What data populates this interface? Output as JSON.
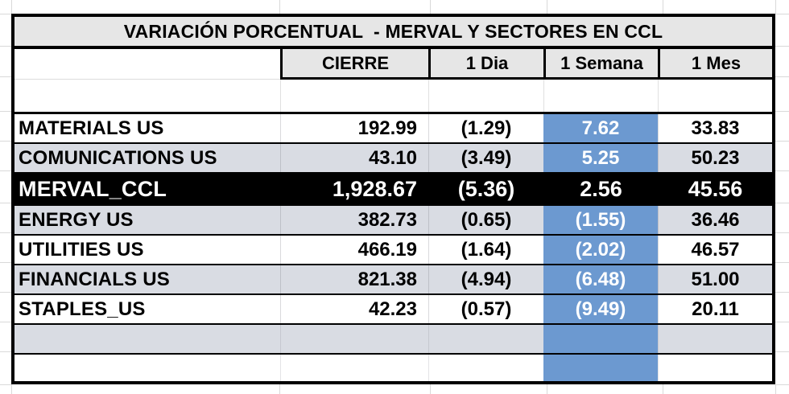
{
  "title": "VARIACIÓN PORCENTUAL  - MERVAL Y SECTORES EN CCL",
  "columns": [
    "CIERRE",
    "1 Dia",
    "1 Semana",
    "1 Mes"
  ],
  "rows": [
    {
      "label": "MATERIALS US",
      "cierre": "192.99",
      "dia": "(1.29)",
      "semana": "7.62",
      "mes": "33.83"
    },
    {
      "label": "COMUNICATIONS US",
      "cierre": "43.10",
      "dia": "(3.49)",
      "semana": "5.25",
      "mes": "50.23"
    },
    {
      "label": "MERVAL_CCL",
      "cierre": "1,928.67",
      "dia": "(5.36)",
      "semana": "2.56",
      "mes": "45.56"
    },
    {
      "label": "ENERGY US",
      "cierre": "382.73",
      "dia": "(0.65)",
      "semana": "(1.55)",
      "mes": "36.46"
    },
    {
      "label": "UTILITIES US",
      "cierre": "466.19",
      "dia": "(1.64)",
      "semana": "(2.02)",
      "mes": "46.57"
    },
    {
      "label": "FINANCIALS US",
      "cierre": "821.38",
      "dia": "(4.94)",
      "semana": "(6.48)",
      "mes": "51.00"
    },
    {
      "label": "STAPLES_US",
      "cierre": "42.23",
      "dia": "(0.57)",
      "semana": "(9.49)",
      "mes": "20.11"
    }
  ],
  "colors": {
    "header_bg": "#E6E6E6",
    "stripe_gray": "#D9DCE3",
    "highlight_blue": "#6C99D0",
    "merval_row_bg": "#000000",
    "merval_row_text": "#FFFFFF",
    "border_black": "#000000"
  },
  "chart_data": {
    "type": "table",
    "title": "VARIACIÓN PORCENTUAL  - MERVAL Y SECTORES EN CCL",
    "columns": [
      "",
      "CIERRE",
      "1 Dia",
      "1 Semana",
      "1 Mes"
    ],
    "rows": [
      [
        "MATERIALS US",
        192.99,
        -1.29,
        7.62,
        33.83
      ],
      [
        "COMUNICATIONS US",
        43.1,
        -3.49,
        5.25,
        50.23
      ],
      [
        "MERVAL_CCL",
        1928.67,
        -5.36,
        2.56,
        45.56
      ],
      [
        "ENERGY US",
        382.73,
        -0.65,
        -1.55,
        36.46
      ],
      [
        "UTILITIES US",
        466.19,
        -1.64,
        -2.02,
        46.57
      ],
      [
        "FINANCIALS US",
        821.38,
        -4.94,
        -6.48,
        51.0
      ],
      [
        "STAPLES_US",
        42.23,
        -0.57,
        -9.49,
        20.11
      ]
    ],
    "notes": "Negative percentages shown in parentheses; '1 Semana' column highlighted blue; MERVAL_CCL row highlighted black"
  }
}
